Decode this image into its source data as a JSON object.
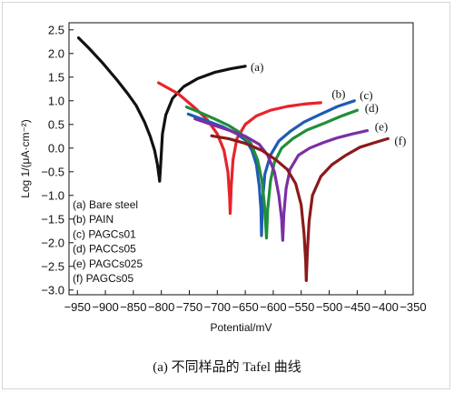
{
  "caption": "(a) 不同样品的 Tafel 曲线",
  "chart_data": {
    "type": "line",
    "xlabel": "Potential/mV",
    "ylabel": "Log 1/(μA·cm⁻²)",
    "xlim": [
      -965,
      -350
    ],
    "ylim": [
      -3.1,
      2.65
    ],
    "x_ticks": [
      -950,
      -900,
      -850,
      -800,
      -750,
      -700,
      -650,
      -600,
      -550,
      -500,
      -450,
      -400,
      -350
    ],
    "x_tick_labels": [
      "−950",
      "−900",
      "−850",
      "−800",
      "−750",
      "−700",
      "−650",
      "−600",
      "−550",
      "−500",
      "−450",
      "−400",
      "−350"
    ],
    "y_ticks": [
      2.5,
      2.0,
      1.5,
      1.0,
      0.5,
      0.0,
      -0.5,
      -1.0,
      -1.5,
      -2.0,
      -2.5,
      -3.0
    ],
    "y_tick_labels": [
      "2.5",
      "2.0",
      "1.5",
      "1.0",
      "0.5",
      "0.0",
      "−0.5",
      "−1.0",
      "−1.5",
      "−2.0",
      "−2.5",
      "−3.0"
    ],
    "grid": false,
    "legend_position": "bottom-left",
    "legend": [
      "(a) Bare steel",
      "(b) PAIN",
      "(c) PAGCs01",
      "(d) PACCs05",
      "(e) PAGCs025",
      "(f) PAGCs05"
    ],
    "series": [
      {
        "name": "(a)",
        "color": "#111111",
        "points": [
          [
            -948,
            2.33
          ],
          [
            -930,
            2.12
          ],
          [
            -905,
            1.8
          ],
          [
            -880,
            1.45
          ],
          [
            -860,
            1.15
          ],
          [
            -845,
            0.9
          ],
          [
            -830,
            0.55
          ],
          [
            -820,
            0.25
          ],
          [
            -812,
            -0.05
          ],
          [
            -807,
            -0.35
          ],
          [
            -804,
            -0.6
          ],
          [
            -803,
            -0.7
          ],
          [
            -801,
            -0.3
          ],
          [
            -798,
            0.3
          ],
          [
            -792,
            0.7
          ],
          [
            -780,
            1.05
          ],
          [
            -760,
            1.3
          ],
          [
            -735,
            1.47
          ],
          [
            -705,
            1.6
          ],
          [
            -675,
            1.68
          ],
          [
            -650,
            1.73
          ]
        ]
      },
      {
        "name": "(b)",
        "color": "#e8232a",
        "points": [
          [
            -805,
            1.38
          ],
          [
            -770,
            1.15
          ],
          [
            -740,
            0.85
          ],
          [
            -718,
            0.6
          ],
          [
            -700,
            0.3
          ],
          [
            -688,
            -0.05
          ],
          [
            -681,
            -0.5
          ],
          [
            -678,
            -1.05
          ],
          [
            -677,
            -1.38
          ],
          [
            -675,
            -0.8
          ],
          [
            -672,
            -0.25
          ],
          [
            -665,
            0.2
          ],
          [
            -650,
            0.5
          ],
          [
            -630,
            0.68
          ],
          [
            -605,
            0.8
          ],
          [
            -575,
            0.88
          ],
          [
            -545,
            0.93
          ],
          [
            -515,
            0.96
          ]
        ]
      },
      {
        "name": "(c)",
        "color": "#1e5bb5",
        "points": [
          [
            -752,
            0.72
          ],
          [
            -720,
            0.58
          ],
          [
            -690,
            0.45
          ],
          [
            -665,
            0.3
          ],
          [
            -648,
            0.15
          ],
          [
            -638,
            -0.05
          ],
          [
            -630,
            -0.35
          ],
          [
            -625,
            -0.8
          ],
          [
            -622,
            -1.3
          ],
          [
            -621,
            -1.85
          ],
          [
            -619,
            -1.1
          ],
          [
            -615,
            -0.55
          ],
          [
            -605,
            -0.15
          ],
          [
            -590,
            0.15
          ],
          [
            -570,
            0.35
          ],
          [
            -545,
            0.55
          ],
          [
            -515,
            0.72
          ],
          [
            -485,
            0.88
          ],
          [
            -455,
            1.0
          ]
        ]
      },
      {
        "name": "(d)",
        "color": "#1f8f3a",
        "points": [
          [
            -755,
            0.87
          ],
          [
            -730,
            0.75
          ],
          [
            -705,
            0.62
          ],
          [
            -680,
            0.48
          ],
          [
            -660,
            0.33
          ],
          [
            -640,
            0.1
          ],
          [
            -628,
            -0.25
          ],
          [
            -620,
            -0.7
          ],
          [
            -615,
            -1.3
          ],
          [
            -612,
            -1.9
          ],
          [
            -610,
            -1.3
          ],
          [
            -605,
            -0.7
          ],
          [
            -598,
            -0.3
          ],
          [
            -585,
            0.0
          ],
          [
            -565,
            0.2
          ],
          [
            -540,
            0.38
          ],
          [
            -510,
            0.52
          ],
          [
            -480,
            0.67
          ],
          [
            -450,
            0.8
          ]
        ]
      },
      {
        "name": "(e)",
        "color": "#7b2fa3",
        "points": [
          [
            -740,
            0.62
          ],
          [
            -710,
            0.5
          ],
          [
            -680,
            0.38
          ],
          [
            -650,
            0.25
          ],
          [
            -625,
            0.08
          ],
          [
            -610,
            -0.15
          ],
          [
            -598,
            -0.5
          ],
          [
            -590,
            -1.0
          ],
          [
            -585,
            -1.5
          ],
          [
            -583,
            -1.95
          ],
          [
            -581,
            -1.4
          ],
          [
            -577,
            -0.85
          ],
          [
            -570,
            -0.45
          ],
          [
            -555,
            -0.15
          ],
          [
            -535,
            0.0
          ],
          [
            -510,
            0.12
          ],
          [
            -485,
            0.22
          ],
          [
            -458,
            0.3
          ],
          [
            -432,
            0.37
          ]
        ]
      },
      {
        "name": "(f)",
        "color": "#8b1a1a",
        "points": [
          [
            -710,
            0.26
          ],
          [
            -680,
            0.2
          ],
          [
            -650,
            0.1
          ],
          [
            -620,
            -0.05
          ],
          [
            -595,
            -0.25
          ],
          [
            -575,
            -0.45
          ],
          [
            -560,
            -0.75
          ],
          [
            -550,
            -1.2
          ],
          [
            -545,
            -1.8
          ],
          [
            -542,
            -2.4
          ],
          [
            -541,
            -2.8
          ],
          [
            -539,
            -2.2
          ],
          [
            -536,
            -1.55
          ],
          [
            -530,
            -1.0
          ],
          [
            -515,
            -0.6
          ],
          [
            -495,
            -0.35
          ],
          [
            -470,
            -0.15
          ],
          [
            -445,
            0.02
          ],
          [
            -418,
            0.12
          ],
          [
            -395,
            0.2
          ]
        ]
      }
    ],
    "series_labels": [
      {
        "text": "(a)",
        "x": -647,
        "y": 1.73
      },
      {
        "text": "(b)",
        "x": -502,
        "y": 1.16
      },
      {
        "text": "(c)",
        "x": -452,
        "y": 1.13
      },
      {
        "text": "(d)",
        "x": -443,
        "y": 0.86
      },
      {
        "text": "(e)",
        "x": -425,
        "y": 0.47
      },
      {
        "text": "(f)",
        "x": -390,
        "y": 0.17
      }
    ]
  }
}
